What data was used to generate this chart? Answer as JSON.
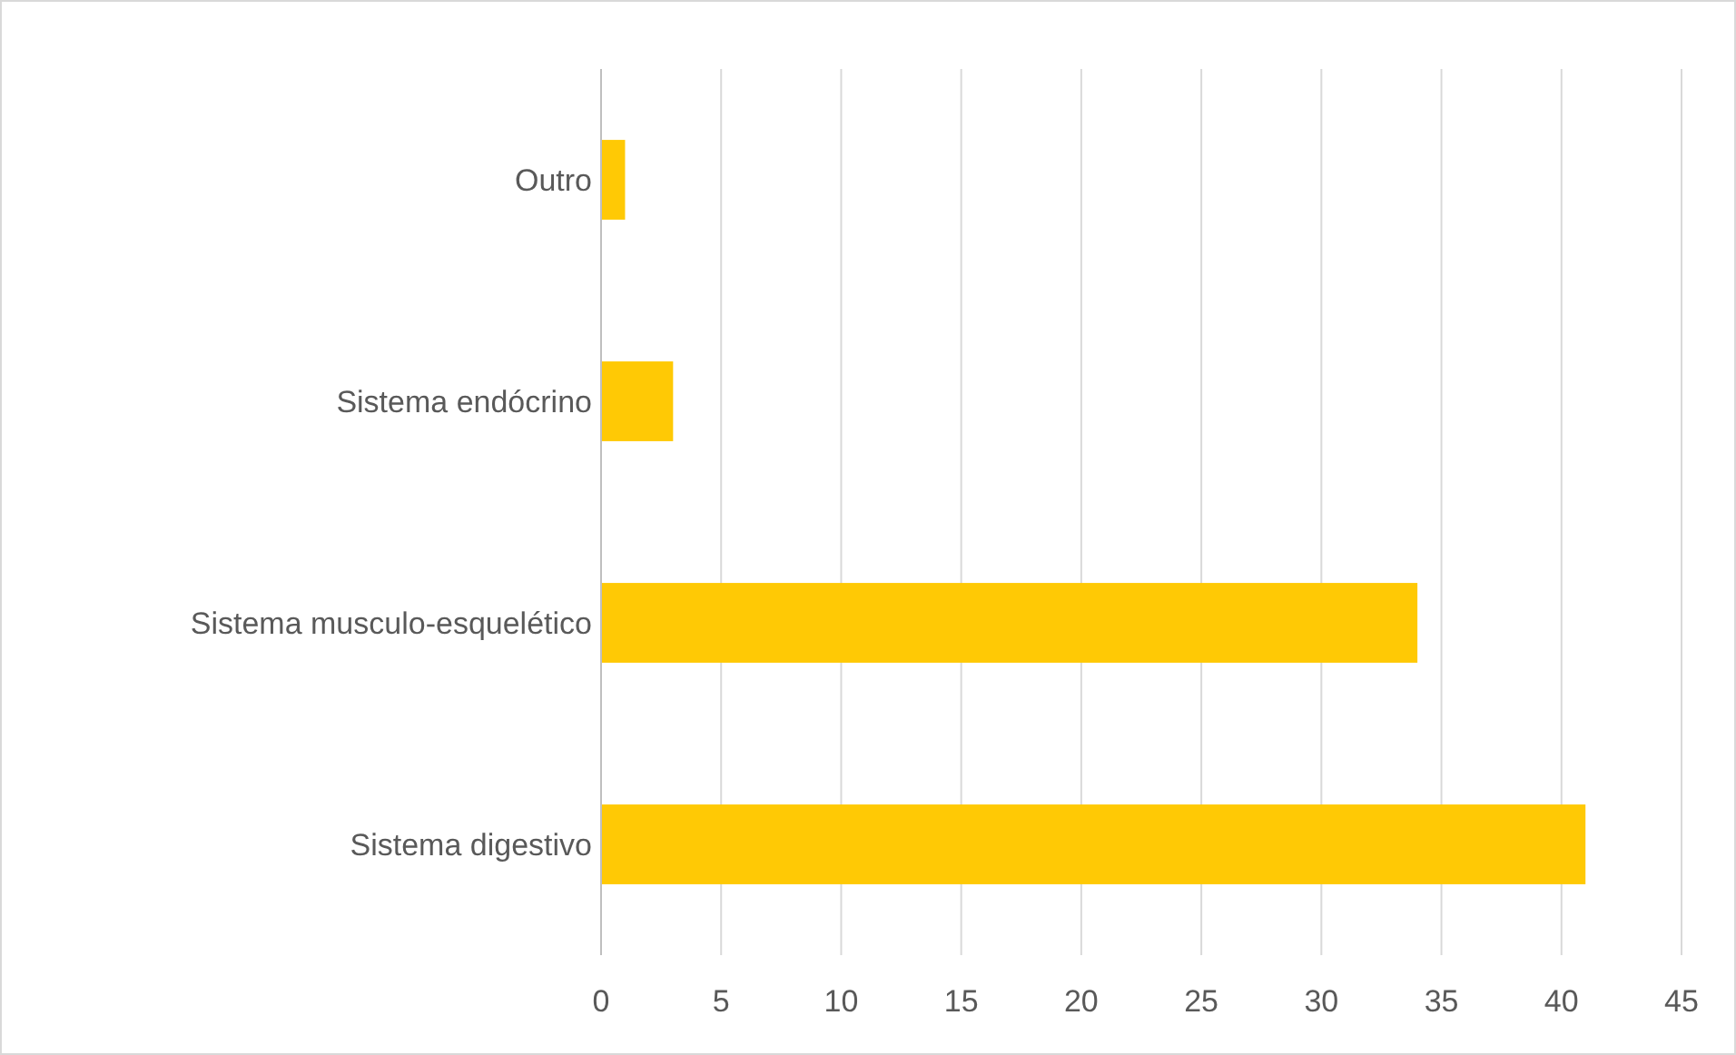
{
  "chart_data": {
    "type": "bar",
    "orientation": "horizontal",
    "categories": [
      "Outro",
      "Sistema endócrino",
      "Sistema musculo-esquelético",
      "Sistema digestivo"
    ],
    "values": [
      1,
      3,
      34,
      41
    ],
    "color": "#ffc905",
    "xlim": [
      0,
      45
    ],
    "xticks": [
      0,
      5,
      10,
      15,
      20,
      25,
      30,
      35,
      40,
      45
    ],
    "grid": "x"
  }
}
